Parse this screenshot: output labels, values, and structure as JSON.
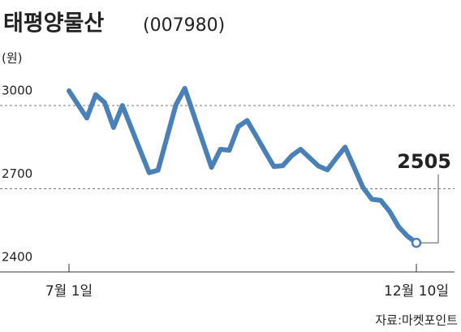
{
  "chart_data": {
    "type": "line",
    "title": "태평양물산",
    "subtitle": "(007980)",
    "y_label": "(원)",
    "source": "자료:마켓포인트",
    "annotation": "2505",
    "categories": [
      "7월 1일",
      null,
      null,
      null,
      null,
      null,
      null,
      null,
      null,
      null,
      null,
      null,
      null,
      null,
      null,
      null,
      null,
      null,
      null,
      null,
      null,
      null,
      null,
      null,
      null,
      null,
      null,
      null,
      null,
      null,
      null,
      null,
      null,
      null,
      null,
      null,
      null,
      null,
      null,
      "12월 10일"
    ],
    "series": [
      {
        "name": "태평양물산",
        "color": "#4a80b8",
        "values": [
          3053,
          3004,
          2955,
          3039,
          3011,
          2921,
          3000,
          2919,
          2838,
          2758,
          2767,
          2885,
          3002,
          3062,
          2967,
          2872,
          2777,
          2842,
          2839,
          2924,
          2946,
          2891,
          2835,
          2780,
          2783,
          2819,
          2842,
          2812,
          2782,
          2768,
          2810,
          2850,
          2778,
          2705,
          2662,
          2658,
          2618,
          2563,
          2529,
          2505
        ]
      }
    ],
    "ylim": [
      2400,
      3000
    ],
    "yticks": [
      2400,
      2700,
      3000
    ],
    "grid": true
  }
}
